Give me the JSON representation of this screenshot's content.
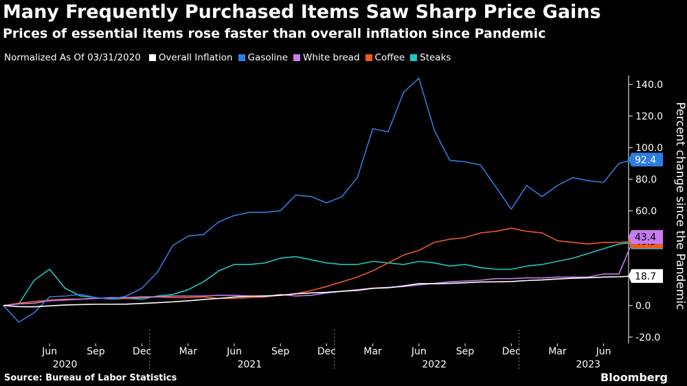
{
  "header": {
    "title": "Many Frequently Purchased Items Saw Sharp Price Gains",
    "subtitle": "Prices of essential items rose faster than overall inflation since Pandemic"
  },
  "legend": {
    "note": "Normalized As Of 03/31/2020",
    "items": [
      {
        "name": "Overall Inflation",
        "color": "#ffffff"
      },
      {
        "name": "Gasoline",
        "color": "#2f7de1"
      },
      {
        "name": "White bread",
        "color": "#c77cf0"
      },
      {
        "name": "Coffee",
        "color": "#ee5a24"
      },
      {
        "name": "Steaks",
        "color": "#1ec8c8"
      }
    ]
  },
  "footer": {
    "source": "Source: Bureau of Labor Statistics",
    "brand": "Bloomberg"
  },
  "chart_data": {
    "type": "line",
    "x": [
      "2020-03",
      "2020-04",
      "2020-05",
      "2020-06",
      "2020-07",
      "2020-08",
      "2020-09",
      "2020-10",
      "2020-11",
      "2020-12",
      "2021-01",
      "2021-02",
      "2021-03",
      "2021-04",
      "2021-05",
      "2021-06",
      "2021-07",
      "2021-08",
      "2021-09",
      "2021-10",
      "2021-11",
      "2021-12",
      "2022-01",
      "2022-02",
      "2022-03",
      "2022-04",
      "2022-05",
      "2022-06",
      "2022-07",
      "2022-08",
      "2022-09",
      "2022-10",
      "2022-11",
      "2022-12",
      "2023-01",
      "2023-02",
      "2023-03",
      "2023-04",
      "2023-05",
      "2023-06",
      "2023-07",
      "2023-08"
    ],
    "series": [
      {
        "name": "Overall Inflation",
        "color": "#ffffff",
        "values": [
          0,
          -0.7,
          -0.8,
          -0.2,
          0.3,
          0.6,
          0.8,
          0.8,
          0.9,
          1.3,
          1.8,
          2.3,
          3.0,
          3.8,
          4.5,
          5.4,
          5.9,
          6.1,
          6.5,
          7.4,
          8.0,
          8.3,
          9.0,
          9.6,
          10.9,
          11.3,
          12.4,
          13.9,
          13.8,
          14.0,
          14.4,
          14.9,
          15.0,
          15.2,
          15.8,
          16.2,
          16.8,
          17.3,
          17.6,
          18.0,
          18.2,
          18.7
        ],
        "end_label": "18.7"
      },
      {
        "name": "Gasoline",
        "color": "#2f7de1",
        "values": [
          0,
          -10.5,
          -4.5,
          5.5,
          6,
          7,
          5,
          4,
          6,
          11,
          21,
          38,
          44,
          45,
          53,
          57,
          59,
          59,
          60,
          70,
          69,
          65,
          69,
          81,
          112,
          110,
          135,
          144,
          111,
          92,
          91,
          89,
          75,
          61,
          76,
          69,
          76,
          81,
          79,
          78,
          90,
          92.4
        ],
        "end_label": "92.4"
      },
      {
        "name": "White bread",
        "color": "#c77cf0",
        "values": [
          0,
          1,
          1.5,
          3,
          3.5,
          4,
          4.5,
          5,
          5,
          5.5,
          5.5,
          6,
          6,
          6,
          6.5,
          6.5,
          6,
          5.5,
          7,
          6,
          6.5,
          8,
          9,
          10,
          11,
          11.5,
          12,
          13,
          14,
          15,
          15.5,
          16,
          17,
          17,
          17.5,
          17.5,
          18,
          18,
          18,
          20,
          20,
          43.4
        ],
        "end_label": "43.4"
      },
      {
        "name": "Coffee",
        "color": "#ee5a24",
        "values": [
          0,
          1.5,
          2.5,
          3.5,
          4,
          4,
          4.5,
          4.5,
          4.5,
          5,
          5.5,
          5,
          5,
          5.5,
          4.5,
          4.5,
          5,
          5.5,
          6.5,
          7.5,
          9.5,
          12,
          15,
          18,
          22,
          27,
          32,
          35,
          40,
          42,
          43,
          46,
          47,
          49,
          47,
          46,
          41,
          40,
          39,
          40,
          40,
          40.5
        ],
        "end_label": "40.5"
      },
      {
        "name": "Steaks",
        "color": "#1ec8c8",
        "values": [
          0,
          1,
          16,
          23,
          11,
          6,
          5,
          4,
          4.5,
          4,
          6,
          7,
          10,
          15,
          22,
          26,
          26,
          27,
          30,
          31,
          29,
          27,
          26,
          26,
          28,
          27,
          26,
          28,
          27,
          25,
          26,
          24,
          23,
          23,
          25,
          26,
          28,
          30,
          33,
          36,
          39,
          40
        ],
        "end_label": "40.0"
      }
    ],
    "yaxis": {
      "label": "Percent change since the Pandemic",
      "ticks": [
        "-20.0",
        "0.0",
        "20.0",
        "40.0",
        "60.0",
        "80.0",
        "100.0",
        "120.0",
        "140.0"
      ],
      "ylim": [
        -24,
        150
      ]
    },
    "xaxis": {
      "month_ticks": [
        "Jun",
        "Sep",
        "Dec",
        "Mar",
        "Jun",
        "Sep",
        "Dec",
        "Mar",
        "Jun",
        "Sep",
        "Dec",
        "Mar",
        "Jun"
      ],
      "years": [
        "2020",
        "2021",
        "2022",
        "2023"
      ]
    },
    "grid": "vertical-dotted"
  }
}
